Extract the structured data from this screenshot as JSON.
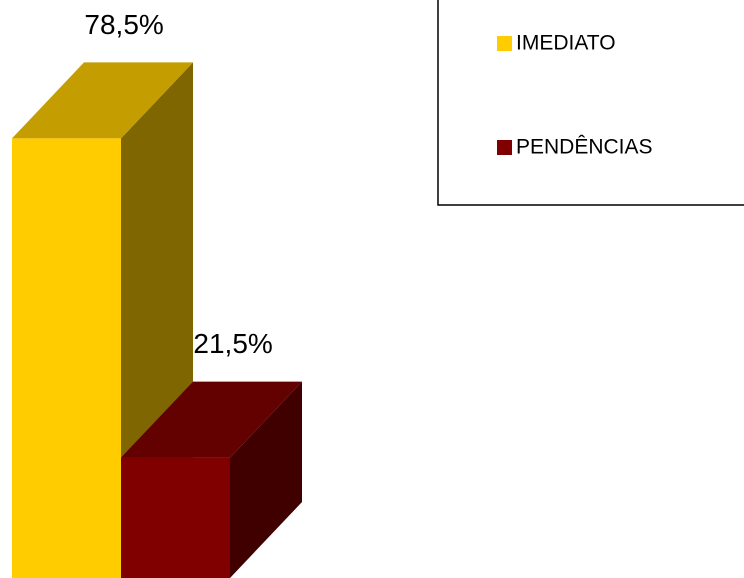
{
  "chart_data": {
    "type": "bar3d",
    "series": [
      {
        "name": "IMEDIATO",
        "color": "#ffcc00",
        "values": [
          78.5
        ],
        "value_labels": [
          "78,5%"
        ]
      },
      {
        "name": "PENDÊNCIAS",
        "color": "#800000",
        "values": [
          21.5
        ],
        "value_labels": [
          "21,5%"
        ]
      }
    ],
    "legend": "top-right"
  }
}
